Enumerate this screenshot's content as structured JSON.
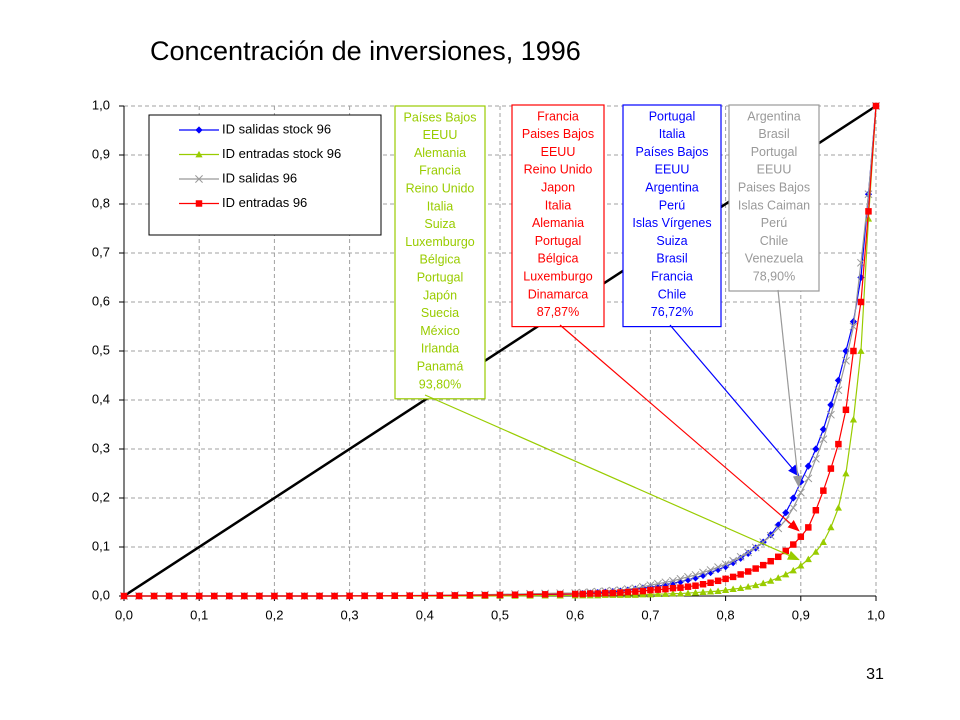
{
  "chart_data": {
    "type": "line",
    "title": "Concentración de inversiones, 1996",
    "page_number": "31",
    "xlim": [
      0,
      1
    ],
    "ylim": [
      0,
      1
    ],
    "xticks": [
      {
        "value": 0,
        "label": "0,0"
      },
      {
        "value": 0.1,
        "label": "0,1"
      },
      {
        "value": 0.2,
        "label": "0,2"
      },
      {
        "value": 0.3,
        "label": "0,3"
      },
      {
        "value": 0.4,
        "label": "0,4"
      },
      {
        "value": 0.5,
        "label": "0,5"
      },
      {
        "value": 0.6,
        "label": "0,6"
      },
      {
        "value": 0.7,
        "label": "0,7"
      },
      {
        "value": 0.8,
        "label": "0,8"
      },
      {
        "value": 0.9,
        "label": "0,9"
      },
      {
        "value": 1,
        "label": "1,0"
      }
    ],
    "yticks": [
      {
        "value": 0,
        "label": "0,0"
      },
      {
        "value": 0.1,
        "label": "0,1"
      },
      {
        "value": 0.2,
        "label": "0,2"
      },
      {
        "value": 0.3,
        "label": "0,3"
      },
      {
        "value": 0.4,
        "label": "0,4"
      },
      {
        "value": 0.5,
        "label": "0,5"
      },
      {
        "value": 0.6,
        "label": "0,6"
      },
      {
        "value": 0.7,
        "label": "0,7"
      },
      {
        "value": 0.8,
        "label": "0,8"
      },
      {
        "value": 0.9,
        "label": "0,9"
      },
      {
        "value": 1,
        "label": "1,0"
      }
    ],
    "grid": true,
    "legend": "upper-left",
    "x": [
      0,
      0.02,
      0.04,
      0.06,
      0.08,
      0.1,
      0.12,
      0.14,
      0.16,
      0.18,
      0.2,
      0.22,
      0.24,
      0.26,
      0.28,
      0.3,
      0.32,
      0.34,
      0.36,
      0.38,
      0.4,
      0.42,
      0.44,
      0.46,
      0.48,
      0.5,
      0.52,
      0.54,
      0.56,
      0.58,
      0.6,
      0.61,
      0.62,
      0.63,
      0.64,
      0.65,
      0.66,
      0.67,
      0.68,
      0.69,
      0.7,
      0.71,
      0.72,
      0.73,
      0.74,
      0.75,
      0.76,
      0.77,
      0.78,
      0.79,
      0.8,
      0.81,
      0.82,
      0.83,
      0.84,
      0.85,
      0.86,
      0.87,
      0.88,
      0.89,
      0.9,
      0.91,
      0.92,
      0.93,
      0.94,
      0.95,
      0.96,
      0.97,
      0.98,
      0.99,
      1
    ],
    "series": [
      {
        "name": "ID salidas stock 96",
        "color": "#0000ff",
        "marker": "diamond",
        "values": [
          0,
          0,
          0,
          0,
          0,
          0,
          0,
          0,
          0,
          0,
          0,
          0,
          0,
          0,
          0,
          0.0003,
          0.0004,
          0.0005,
          0.0006,
          0.0007,
          0.0008,
          0.001,
          0.0012,
          0.0014,
          0.0017,
          0.002,
          0.0023,
          0.0027,
          0.0031,
          0.0035,
          0.004,
          0.005,
          0.006,
          0.007,
          0.008,
          0.009,
          0.01,
          0.012,
          0.014,
          0.016,
          0.018,
          0.02,
          0.023,
          0.026,
          0.029,
          0.033,
          0.037,
          0.042,
          0.048,
          0.054,
          0.06,
          0.068,
          0.077,
          0.087,
          0.098,
          0.11,
          0.125,
          0.145,
          0.17,
          0.2,
          0.233,
          0.265,
          0.3,
          0.34,
          0.39,
          0.44,
          0.5,
          0.56,
          0.65,
          0.82,
          1.0
        ]
      },
      {
        "name": "ID entradas stock 96",
        "color": "#99cc00",
        "marker": "triangle",
        "values": [
          0,
          0,
          0,
          0,
          0,
          0,
          0,
          0,
          0,
          0,
          0,
          0,
          0,
          0,
          0,
          0,
          0,
          0,
          0,
          0,
          0,
          0,
          0,
          0,
          0,
          0.0002,
          0.0003,
          0.0005,
          0.0007,
          0.0009,
          0.001,
          0.001,
          0.001,
          0.001,
          0.002,
          0.002,
          0.002,
          0.002,
          0.002,
          0.003,
          0.003,
          0.004,
          0.004,
          0.005,
          0.005,
          0.006,
          0.007,
          0.008,
          0.009,
          0.01,
          0.012,
          0.014,
          0.016,
          0.019,
          0.022,
          0.026,
          0.031,
          0.037,
          0.044,
          0.052,
          0.062,
          0.075,
          0.09,
          0.11,
          0.14,
          0.18,
          0.25,
          0.36,
          0.5,
          0.77,
          1.0
        ]
      },
      {
        "name": "ID salidas 96",
        "color": "#999999",
        "marker": "x",
        "values": [
          0,
          0,
          0,
          0,
          0,
          0,
          0,
          0,
          0,
          0,
          0,
          0,
          0,
          0,
          0,
          0.0004,
          0.0005,
          0.0007,
          0.0009,
          0.0011,
          0.0013,
          0.0016,
          0.002,
          0.0024,
          0.0029,
          0.0034,
          0.004,
          0.0046,
          0.0052,
          0.0058,
          0.006,
          0.007,
          0.008,
          0.009,
          0.01,
          0.011,
          0.012,
          0.014,
          0.016,
          0.019,
          0.022,
          0.025,
          0.028,
          0.031,
          0.035,
          0.039,
          0.043,
          0.048,
          0.053,
          0.059,
          0.065,
          0.072,
          0.08,
          0.089,
          0.099,
          0.11,
          0.123,
          0.138,
          0.155,
          0.18,
          0.211,
          0.24,
          0.28,
          0.32,
          0.37,
          0.42,
          0.48,
          0.55,
          0.68,
          0.82,
          1.0
        ]
      },
      {
        "name": "ID entradas 96",
        "color": "#ff0000",
        "marker": "square",
        "values": [
          0,
          0,
          0,
          0,
          0,
          0,
          0,
          0,
          0,
          0,
          0,
          0,
          0,
          0,
          0,
          0.0002,
          0.0003,
          0.0004,
          0.0005,
          0.0006,
          0.0008,
          0.001,
          0.0012,
          0.0015,
          0.0018,
          0.0021,
          0.0025,
          0.003,
          0.0034,
          0.0038,
          0.004,
          0.004,
          0.005,
          0.005,
          0.006,
          0.006,
          0.007,
          0.008,
          0.009,
          0.01,
          0.012,
          0.013,
          0.014,
          0.016,
          0.017,
          0.019,
          0.021,
          0.024,
          0.027,
          0.031,
          0.035,
          0.039,
          0.044,
          0.05,
          0.056,
          0.063,
          0.071,
          0.08,
          0.092,
          0.105,
          0.121,
          0.14,
          0.175,
          0.215,
          0.26,
          0.31,
          0.38,
          0.5,
          0.6,
          0.785,
          1.0
        ]
      }
    ],
    "annotations": [
      {
        "color": "#99cc00",
        "lines": [
          "Países Bajos",
          "EEUU",
          "Alemania",
          "Francia",
          "Reino Unido",
          "Italia",
          "Suiza",
          "Luxemburgo",
          "Bélgica",
          "Portugal",
          "Japón",
          "Suecia",
          "México",
          "Irlanda",
          "Panamá",
          "93,80%"
        ]
      },
      {
        "color": "#ff0000",
        "lines": [
          "Francia",
          "Paises Bajos",
          "EEUU",
          "Reino Unido",
          "Japon",
          "Italia",
          "Alemania",
          "Portugal",
          "Bélgica",
          "Luxemburgo",
          "Dinamarca",
          "87,87%"
        ]
      },
      {
        "color": "#0000ff",
        "lines": [
          "Portugal",
          "Italia",
          "Países Bajos",
          "EEUU",
          "Argentina",
          "Perú",
          "Islas Vírgenes",
          "Suiza",
          "Brasil",
          "Francia",
          "Chile",
          "76,72%"
        ]
      },
      {
        "color": "#999999",
        "lines": [
          "Argentina",
          "Brasil",
          "Portugal",
          "EEUU",
          "Paises Bajos",
          "Islas Caiman",
          "Perú",
          "Chile",
          "Venezuela",
          "78,90%"
        ]
      }
    ]
  }
}
